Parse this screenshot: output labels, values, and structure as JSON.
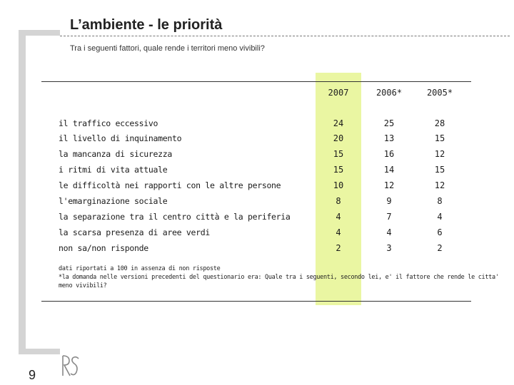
{
  "title": "L’ambiente - le priorità",
  "subtitle": "Tra i seguenti fattori, quale rende i territori meno vivibili?",
  "table": {
    "columns": [
      "2007",
      "2006*",
      "2005*"
    ],
    "rows": [
      {
        "label": "il traffico eccessivo",
        "values": [
          "24",
          "25",
          "28"
        ]
      },
      {
        "label": "il livello di inquinamento",
        "values": [
          "20",
          "13",
          "15"
        ]
      },
      {
        "label": "la mancanza di sicurezza",
        "values": [
          "15",
          "16",
          "12"
        ]
      },
      {
        "label": "i ritmi di vita attuale",
        "values": [
          "15",
          "14",
          "15"
        ]
      },
      {
        "label": "le difficoltà nei rapporti con le altre persone",
        "values": [
          "10",
          "12",
          "12"
        ]
      },
      {
        "label": "l'emarginazione sociale",
        "values": [
          "8",
          "9",
          "8"
        ]
      },
      {
        "label": "la separazione tra il centro città e la periferia",
        "values": [
          "4",
          "7",
          "4"
        ]
      },
      {
        "label": "la scarsa presenza di aree verdi",
        "values": [
          "4",
          "4",
          "6"
        ]
      },
      {
        "label": "non sa/non risponde",
        "values": [
          "2",
          "3",
          "2"
        ]
      }
    ]
  },
  "notes": [
    "dati riportati a 100 in assenza di non risposte",
    "*la domanda nelle versioni precedenti del questionario era: Quale tra i seguenti, secondo lei, e' il fattore che rende le citta'",
    "meno vivibili?"
  ],
  "page_number": "9",
  "colors": {
    "highlight": "#eaf6a2",
    "frame": "#d4d4d4",
    "rule": "#333333"
  }
}
